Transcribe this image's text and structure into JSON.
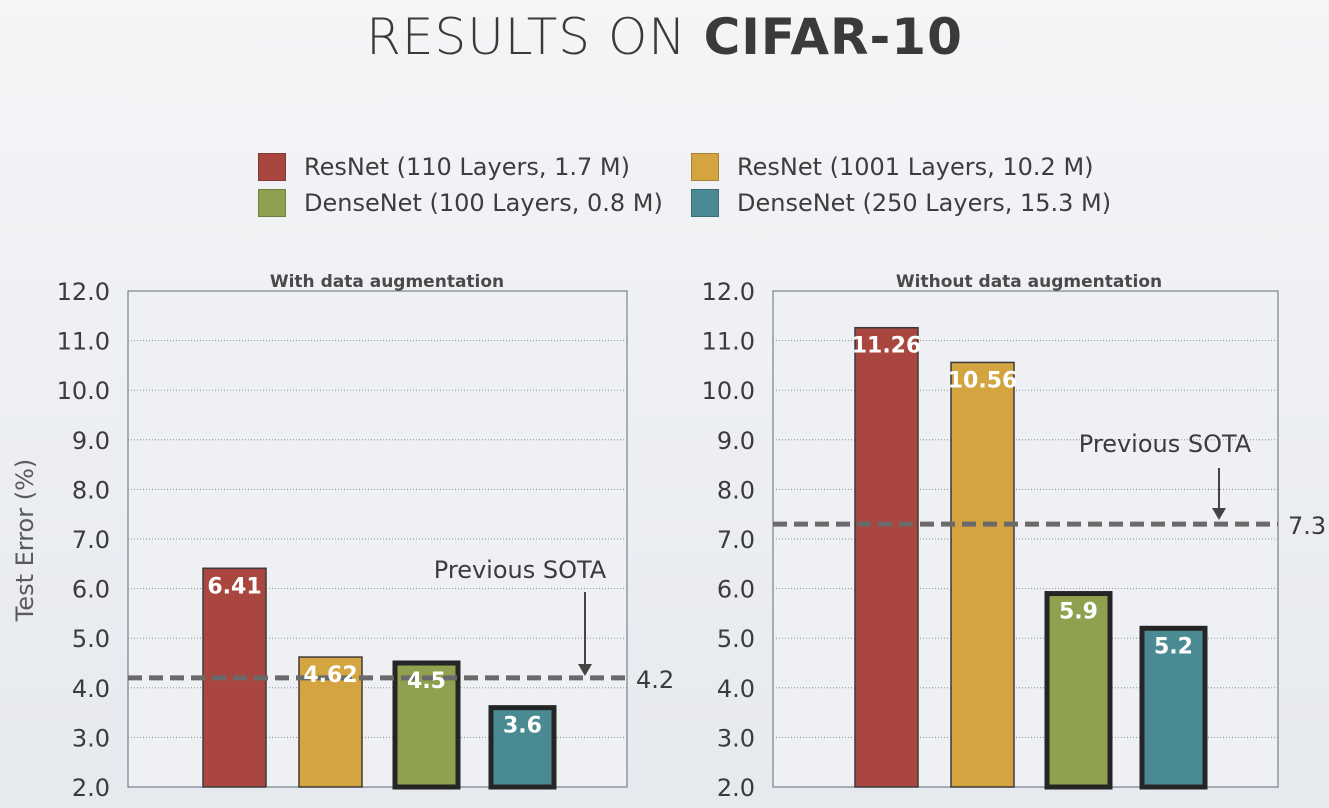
{
  "title": {
    "light": "RESULTS ON",
    "bold": "CIFAR-10"
  },
  "legend": [
    {
      "label": "ResNet (110 Layers, 1.7 M)",
      "color": "#a9463f"
    },
    {
      "label": "ResNet (1001 Layers, 10.2 M)",
      "color": "#d3a440"
    },
    {
      "label": "DenseNet (100 Layers, 0.8 M)",
      "color": "#8fa04f"
    },
    {
      "label": "DenseNet (250 Layers, 15.3 M)",
      "color": "#4a8a92"
    }
  ],
  "chart_data": [
    {
      "type": "bar",
      "title": "With data augmentation",
      "ylabel": "Test Error (%)",
      "ylim": [
        2.0,
        12.0
      ],
      "yticks": [
        "2.0",
        "3.0",
        "4.0",
        "5.0",
        "6.0",
        "7.0",
        "8.0",
        "9.0",
        "10.0",
        "11.0",
        "12.0"
      ],
      "grid": true,
      "categories": [
        "ResNet (110 Layers, 1.7 M)",
        "ResNet (1001 Layers, 10.2 M)",
        "DenseNet (100 Layers, 0.8 M)",
        "DenseNet (250 Layers, 15.3 M)"
      ],
      "values": [
        6.41,
        4.62,
        4.5,
        3.6
      ],
      "data_labels": [
        "6.41",
        "4.62",
        "4.5",
        "3.6"
      ],
      "reference_line": {
        "value": 4.2,
        "label": "4.2",
        "annotation": "Previous SOTA"
      }
    },
    {
      "type": "bar",
      "title": "Without data augmentation",
      "ylabel": "",
      "ylim": [
        2.0,
        12.0
      ],
      "yticks": [
        "2.0",
        "3.0",
        "4.0",
        "5.0",
        "6.0",
        "7.0",
        "8.0",
        "9.0",
        "10.0",
        "11.0",
        "12.0"
      ],
      "grid": true,
      "categories": [
        "ResNet (110 Layers, 1.7 M)",
        "ResNet (1001 Layers, 10.2 M)",
        "DenseNet (100 Layers, 0.8 M)",
        "DenseNet (250 Layers, 15.3 M)"
      ],
      "values": [
        11.26,
        10.56,
        5.9,
        5.2
      ],
      "data_labels": [
        "11.26",
        "10.56",
        "5.9",
        "5.2"
      ],
      "reference_line": {
        "value": 7.3,
        "label": "7.3",
        "annotation": "Previous SOTA"
      }
    }
  ]
}
